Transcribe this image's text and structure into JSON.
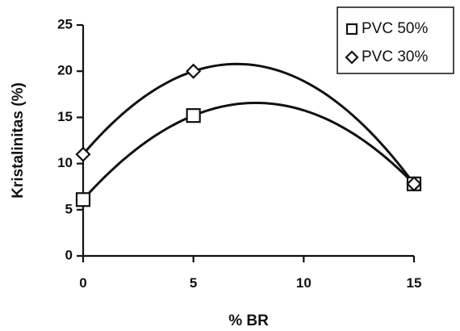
{
  "chart_data": {
    "type": "scatter",
    "title": "",
    "xlabel": "% BR",
    "ylabel": "Kristalinitas (%)",
    "x_ticks": [
      "0",
      "5",
      "10",
      "15"
    ],
    "y_ticks": [
      "0",
      "5",
      "10",
      "15",
      "20",
      "25"
    ],
    "xlim": [
      0,
      15
    ],
    "ylim": [
      0,
      25
    ],
    "grid": false,
    "legend_position": "top-right",
    "trendline": "quadratic",
    "series": [
      {
        "name": "PVC 50%",
        "marker": "square",
        "x": [
          0,
          5,
          15
        ],
        "y": [
          6.1,
          15.2,
          7.8
        ]
      },
      {
        "name": "PVC 30%",
        "marker": "diamond",
        "x": [
          0,
          5,
          15
        ],
        "y": [
          11.0,
          20.0,
          7.8
        ]
      }
    ],
    "colors": {
      "ink": "#111111",
      "background": "#ffffff"
    }
  }
}
